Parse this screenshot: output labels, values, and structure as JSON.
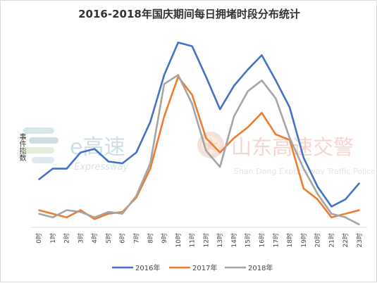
{
  "chart_data": {
    "type": "line",
    "title": "2016-2018年国庆期间每日拥堵时段分布统计",
    "ylabel": "事件指数",
    "xlabel": "",
    "categories": [
      "0时",
      "1时",
      "2时",
      "3时",
      "4时",
      "5时",
      "6时",
      "7时",
      "8时",
      "9时",
      "10时",
      "11时",
      "12时",
      "13时",
      "14时",
      "15时",
      "16时",
      "17时",
      "18时",
      "19时",
      "20时",
      "21时",
      "22时",
      "23时"
    ],
    "ylim": [
      0,
      100
    ],
    "grid": false,
    "legend_position": "bottom",
    "series": [
      {
        "name": "2016年",
        "color": "#4472c4",
        "values": [
          25,
          31,
          31,
          40,
          42,
          35,
          34,
          40,
          57,
          83,
          101,
          99,
          82,
          64,
          77,
          86,
          94,
          80,
          65,
          37,
          21,
          10,
          14,
          23
        ]
      },
      {
        "name": "2017年",
        "color": "#ed7d31",
        "values": [
          8,
          6,
          4,
          8,
          3,
          6,
          7,
          15,
          31,
          60,
          82,
          72,
          48,
          40,
          48,
          54,
          62,
          50,
          47,
          20,
          14,
          4,
          6,
          8
        ]
      },
      {
        "name": "2018年",
        "color": "#a5a5a5",
        "values": [
          6,
          4,
          8,
          7,
          4,
          7,
          6,
          16,
          34,
          78,
          83,
          67,
          41,
          32,
          60,
          74,
          80,
          70,
          48,
          31,
          17,
          6,
          4,
          0
        ]
      }
    ]
  },
  "watermarks": {
    "left_brand": "e高速",
    "left_sub": "Expressway",
    "right_brand": "山东高速交警",
    "right_sub": "Shan Dong Expressway Traffic Police"
  }
}
